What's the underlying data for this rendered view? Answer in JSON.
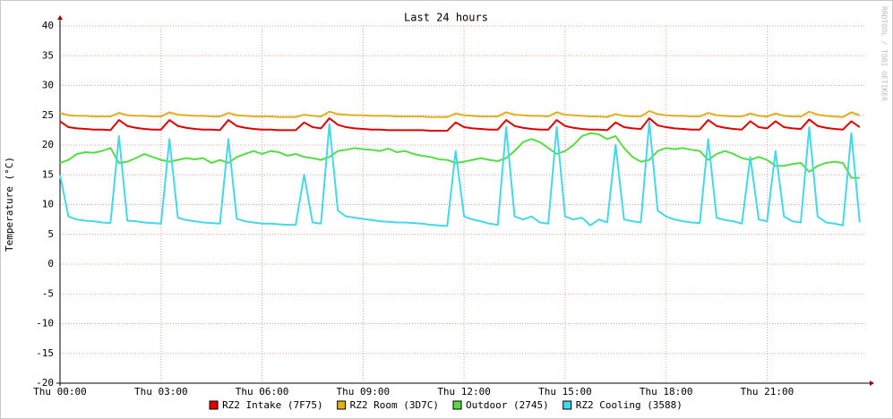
{
  "chart_data": {
    "type": "line",
    "title": "Last 24 hours",
    "y_label": "Temperature (°C)",
    "watermark": "RRDTOOL / TOBI OETIKER",
    "x": [
      0,
      0.25,
      0.5,
      0.75,
      1,
      1.25,
      1.5,
      1.75,
      2,
      2.25,
      2.5,
      2.75,
      3,
      3.25,
      3.5,
      3.75,
      4,
      4.25,
      4.5,
      4.75,
      5,
      5.25,
      5.5,
      5.75,
      6,
      6.25,
      6.5,
      6.75,
      7,
      7.25,
      7.5,
      7.75,
      8,
      8.25,
      8.5,
      8.75,
      9,
      9.25,
      9.5,
      9.75,
      10,
      10.25,
      10.5,
      10.75,
      11,
      11.25,
      11.5,
      11.75,
      12,
      12.25,
      12.5,
      12.75,
      13,
      13.25,
      13.5,
      13.75,
      14,
      14.25,
      14.5,
      14.75,
      15,
      15.25,
      15.5,
      15.75,
      16,
      16.25,
      16.5,
      16.75,
      17,
      17.25,
      17.5,
      17.75,
      18,
      18.25,
      18.5,
      18.75,
      19,
      19.25,
      19.5,
      19.75,
      20,
      20.25,
      20.5,
      20.75,
      21,
      21.25,
      21.5,
      21.75,
      22,
      22.25,
      22.5,
      22.75,
      23,
      23.25,
      23.5,
      23.75
    ],
    "xlim": [
      0,
      23.94
    ],
    "xticks": [
      {
        "value": 0,
        "label": "Thu 00:00"
      },
      {
        "value": 3,
        "label": "Thu 03:00"
      },
      {
        "value": 6,
        "label": "Thu 06:00"
      },
      {
        "value": 9,
        "label": "Thu 09:00"
      },
      {
        "value": 12,
        "label": "Thu 12:00"
      },
      {
        "value": 15,
        "label": "Thu 15:00"
      },
      {
        "value": 18,
        "label": "Thu 18:00"
      },
      {
        "value": 21,
        "label": "Thu 21:00"
      }
    ],
    "ylim": [
      -20,
      40
    ],
    "yticks": [
      -20,
      -15,
      -10,
      -5,
      0,
      5,
      10,
      15,
      20,
      25,
      30,
      35,
      40
    ],
    "grid": true,
    "series": [
      {
        "name": "RZ2 Intake (7F75)",
        "color": "#e00000",
        "values": [
          24,
          23,
          22.8,
          22.7,
          22.6,
          22.6,
          22.5,
          24.2,
          23.2,
          22.9,
          22.7,
          22.6,
          22.6,
          24.2,
          23.2,
          22.9,
          22.7,
          22.6,
          22.6,
          22.5,
          24.2,
          23.2,
          22.9,
          22.7,
          22.6,
          22.6,
          22.5,
          22.5,
          22.5,
          23.8,
          23,
          22.8,
          24.5,
          23.4,
          23,
          22.8,
          22.7,
          22.6,
          22.6,
          22.5,
          22.5,
          22.5,
          22.5,
          22.5,
          22.4,
          22.4,
          22.4,
          23.8,
          23,
          22.8,
          22.7,
          22.6,
          22.6,
          24.2,
          23.2,
          22.9,
          22.7,
          22.6,
          22.6,
          24.2,
          23.2,
          22.9,
          22.7,
          22.6,
          22.6,
          22.5,
          23.8,
          23,
          22.8,
          22.7,
          24.5,
          23.3,
          23,
          22.8,
          22.7,
          22.6,
          22.6,
          24.2,
          23.2,
          22.9,
          22.7,
          22.6,
          24,
          23,
          22.8,
          24,
          23,
          22.8,
          22.7,
          24.3,
          23.2,
          22.9,
          22.7,
          22.6,
          24,
          23
        ]
      },
      {
        "name": "RZ2 Room (3D7C)",
        "color": "#e0b020",
        "values": [
          25.4,
          25,
          24.9,
          24.9,
          24.8,
          24.8,
          24.8,
          25.4,
          25,
          24.9,
          24.9,
          24.8,
          24.8,
          25.5,
          25.1,
          25,
          24.9,
          24.9,
          24.8,
          24.8,
          25.4,
          25,
          24.9,
          24.8,
          24.8,
          24.8,
          24.7,
          24.7,
          24.7,
          25.1,
          24.9,
          24.8,
          25.6,
          25.2,
          25.1,
          25,
          25,
          24.9,
          24.9,
          24.9,
          24.8,
          24.8,
          24.8,
          24.8,
          24.7,
          24.7,
          24.7,
          25.3,
          25,
          24.9,
          24.8,
          24.8,
          24.8,
          25.5,
          25.1,
          25,
          24.9,
          24.9,
          24.8,
          25.5,
          25.1,
          25,
          24.9,
          24.8,
          24.8,
          24.7,
          25.2,
          24.9,
          24.8,
          24.8,
          25.7,
          25.2,
          25,
          24.9,
          24.9,
          24.8,
          24.8,
          25.4,
          25,
          24.9,
          24.8,
          24.8,
          25.3,
          24.9,
          24.8,
          25.3,
          24.9,
          24.8,
          24.8,
          25.6,
          25.1,
          24.9,
          24.8,
          24.7,
          25.5,
          25
        ]
      },
      {
        "name": "Outdoor (2745)",
        "color": "#55dd44",
        "values": [
          17,
          17.5,
          18.5,
          18.8,
          18.7,
          19,
          19.5,
          17,
          17.2,
          17.8,
          18.5,
          18,
          17.5,
          17.2,
          17.5,
          17.8,
          17.6,
          17.8,
          17,
          17.5,
          17,
          18,
          18.5,
          19,
          18.5,
          19,
          18.8,
          18.2,
          18.5,
          18,
          17.8,
          17.5,
          18,
          19,
          19.2,
          19.5,
          19.3,
          19.2,
          19,
          19.4,
          18.8,
          19,
          18.5,
          18.2,
          18,
          17.6,
          17.5,
          17,
          17.2,
          17.5,
          17.8,
          17.5,
          17.3,
          17.8,
          19,
          20.5,
          21,
          20.5,
          19.5,
          18.5,
          19,
          20,
          21.5,
          22,
          21.8,
          21,
          21.5,
          19.5,
          18,
          17.2,
          17.5,
          19,
          19.5,
          19.3,
          19.5,
          19.2,
          19,
          17.5,
          18.5,
          19,
          18.5,
          17.8,
          17.5,
          18,
          17.5,
          16.5,
          16.5,
          16.8,
          17,
          15.5,
          16.5,
          17,
          17.2,
          17,
          14.5,
          14.5
        ]
      },
      {
        "name": "RZ2 Cooling (3588)",
        "color": "#44d8e8",
        "values": [
          15,
          8,
          7.5,
          7.3,
          7.2,
          7,
          6.9,
          21.5,
          7.3,
          7.2,
          7,
          6.9,
          6.8,
          21,
          7.8,
          7.4,
          7.2,
          7,
          6.9,
          6.8,
          21,
          7.6,
          7.2,
          7,
          6.8,
          6.8,
          6.7,
          6.6,
          6.6,
          15,
          7,
          6.8,
          23.5,
          9,
          8,
          7.8,
          7.6,
          7.4,
          7.2,
          7.1,
          7,
          7,
          6.9,
          6.8,
          6.6,
          6.5,
          6.4,
          19,
          8,
          7.5,
          7.2,
          6.8,
          6.6,
          23,
          8,
          7.5,
          8,
          7,
          6.8,
          23,
          8,
          7.5,
          7.8,
          6.5,
          7.5,
          7,
          20,
          7.5,
          7.2,
          7,
          24,
          9,
          8,
          7.5,
          7.2,
          7,
          6.9,
          21,
          7.8,
          7.4,
          7.2,
          6.8,
          18,
          7.5,
          7.2,
          19,
          8,
          7.2,
          7,
          23,
          8,
          7,
          6.8,
          6.5,
          22,
          7
        ]
      }
    ]
  }
}
